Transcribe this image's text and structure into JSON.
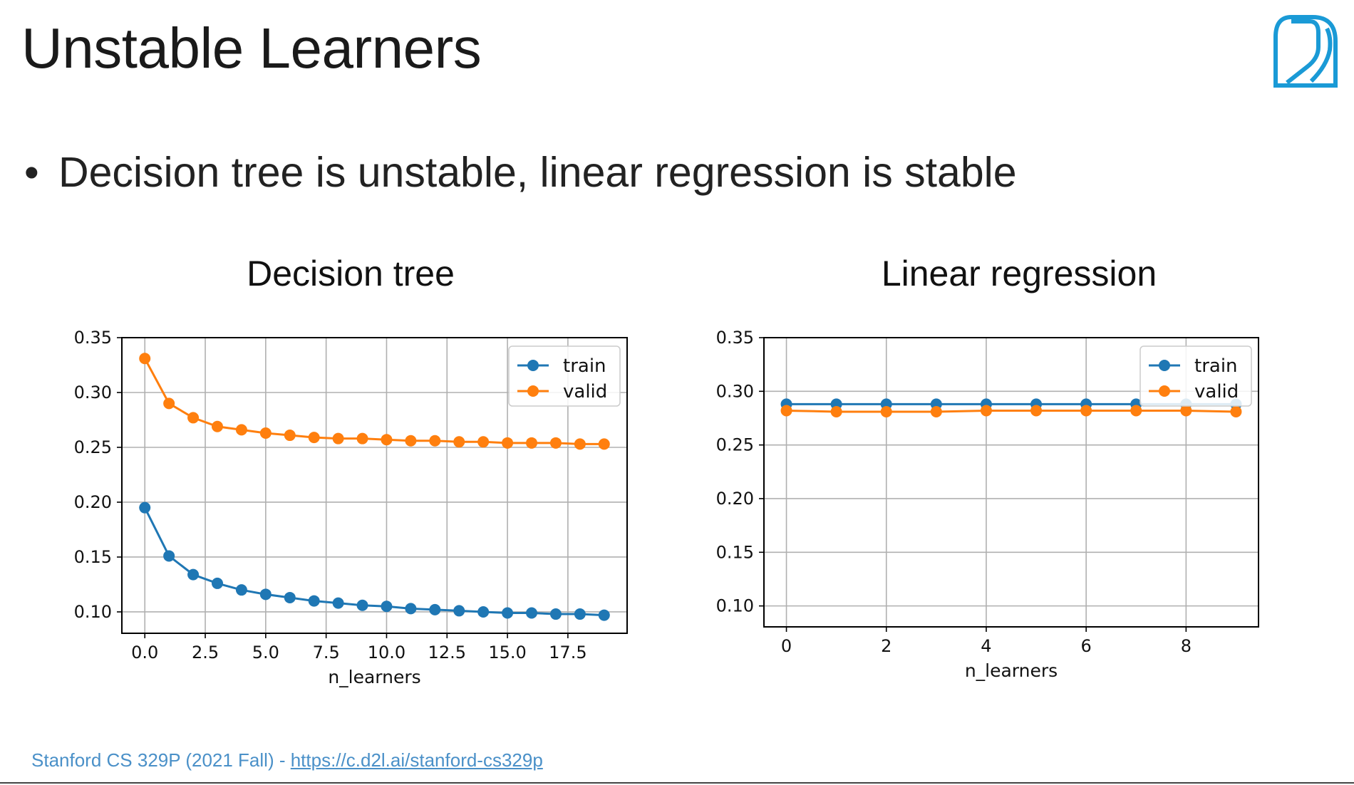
{
  "slide": {
    "title": "Unstable Learners",
    "bullet": "Decision tree is unstable, linear regression is stable",
    "footer_prefix": "Stanford CS 329P (2021 Fall) - ",
    "footer_link": "https://c.d2l.ai/stanford-cs329p"
  },
  "colors": {
    "train": "#1f77b4",
    "valid": "#ff7f0e",
    "logo": "#1a9ad6",
    "footer": "#4a90c8"
  },
  "icons": {
    "logo": "d2l-logo-icon"
  },
  "chart_data": [
    {
      "type": "line",
      "title": "Decision tree",
      "xlabel": "n_learners",
      "ylabel": "",
      "xlim": [
        -0.95,
        19.95
      ],
      "ylim": [
        0.0805,
        0.35
      ],
      "xticks": [
        0,
        2.5,
        5,
        7.5,
        10,
        12.5,
        15,
        17.5
      ],
      "xtick_labels": [
        "0.0",
        "2.5",
        "5.0",
        "7.5",
        "10.0",
        "12.5",
        "15.0",
        "17.5"
      ],
      "yticks": [
        0.1,
        0.15,
        0.2,
        0.25,
        0.3,
        0.35
      ],
      "ytick_labels": [
        "0.10",
        "0.15",
        "0.20",
        "0.25",
        "0.30",
        "0.35"
      ],
      "grid": true,
      "legend": "top-right",
      "x": [
        0,
        1,
        2,
        3,
        4,
        5,
        6,
        7,
        8,
        9,
        10,
        11,
        12,
        13,
        14,
        15,
        16,
        17,
        18,
        19
      ],
      "series": [
        {
          "name": "train",
          "values": [
            0.195,
            0.151,
            0.134,
            0.126,
            0.12,
            0.116,
            0.113,
            0.11,
            0.108,
            0.106,
            0.105,
            0.103,
            0.102,
            0.101,
            0.1,
            0.099,
            0.099,
            0.098,
            0.098,
            0.097
          ]
        },
        {
          "name": "valid",
          "values": [
            0.331,
            0.29,
            0.277,
            0.269,
            0.266,
            0.263,
            0.261,
            0.259,
            0.258,
            0.258,
            0.257,
            0.256,
            0.256,
            0.255,
            0.255,
            0.254,
            0.254,
            0.254,
            0.253,
            0.253
          ]
        }
      ]
    },
    {
      "type": "line",
      "title": "Linear regression",
      "xlabel": "n_learners",
      "ylabel": "",
      "xlim": [
        -0.45,
        9.45
      ],
      "ylim": [
        0.0805,
        0.35
      ],
      "xticks": [
        0,
        2,
        4,
        6,
        8
      ],
      "xtick_labels": [
        "0",
        "2",
        "4",
        "6",
        "8"
      ],
      "yticks": [
        0.1,
        0.15,
        0.2,
        0.25,
        0.3,
        0.35
      ],
      "ytick_labels": [
        "0.10",
        "0.15",
        "0.20",
        "0.25",
        "0.30",
        "0.35"
      ],
      "grid": true,
      "legend": "top-right",
      "x": [
        0,
        1,
        2,
        3,
        4,
        5,
        6,
        7,
        8,
        9
      ],
      "series": [
        {
          "name": "train",
          "values": [
            0.288,
            0.288,
            0.288,
            0.288,
            0.288,
            0.288,
            0.288,
            0.288,
            0.288,
            0.288
          ]
        },
        {
          "name": "valid",
          "values": [
            0.282,
            0.281,
            0.281,
            0.281,
            0.282,
            0.282,
            0.282,
            0.282,
            0.282,
            0.281
          ]
        }
      ]
    }
  ]
}
